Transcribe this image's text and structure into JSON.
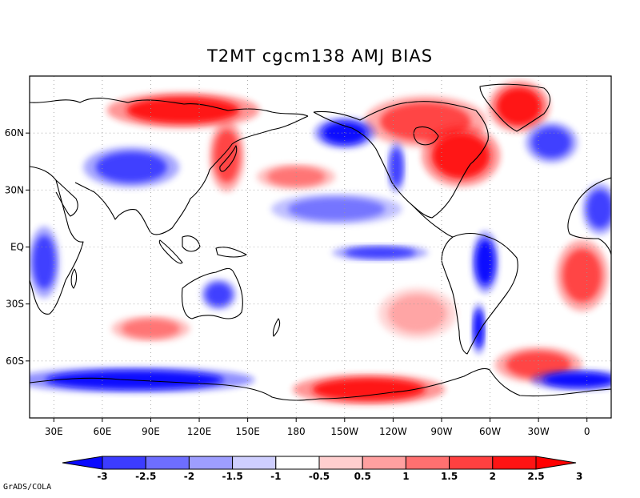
{
  "title": "T2MT cgcm138 AMJ  BIAS",
  "credit": "GrADS/COLA",
  "map": {
    "projection": "equirectangular",
    "lon_range": [
      15,
      375
    ],
    "lat_range": [
      -90,
      90
    ],
    "grid": true,
    "x_ticks": [
      {
        "lon": 30,
        "label": "30E"
      },
      {
        "lon": 60,
        "label": "60E"
      },
      {
        "lon": 90,
        "label": "90E"
      },
      {
        "lon": 120,
        "label": "120E"
      },
      {
        "lon": 150,
        "label": "150E"
      },
      {
        "lon": 180,
        "label": "180"
      },
      {
        "lon": 210,
        "label": "150W"
      },
      {
        "lon": 240,
        "label": "120W"
      },
      {
        "lon": 270,
        "label": "90W"
      },
      {
        "lon": 300,
        "label": "60W"
      },
      {
        "lon": 330,
        "label": "30W"
      },
      {
        "lon": 360,
        "label": "0"
      }
    ],
    "y_ticks": [
      {
        "lat": 60,
        "label": "60N"
      },
      {
        "lat": 30,
        "label": "30N"
      },
      {
        "lat": 0,
        "label": "EQ"
      },
      {
        "lat": -30,
        "label": "30S"
      },
      {
        "lat": -60,
        "label": "60S"
      }
    ]
  },
  "colorbar": {
    "boundaries": [
      "-3",
      "-2.5",
      "-2",
      "-1.5",
      "-1",
      "-0.5",
      "0.5",
      "1",
      "1.5",
      "2",
      "2.5",
      "3"
    ],
    "colors": [
      "#0a0aff",
      "#3c3cff",
      "#6e6eff",
      "#9e9eff",
      "#cfcfff",
      "#ffffff",
      "#ffcfcf",
      "#ffa0a0",
      "#ff7070",
      "#ff4040",
      "#ff1414",
      "#ff0000"
    ]
  },
  "levels": {
    "strong_pos": "#ff1414",
    "pos": "#ff4545",
    "mid_pos": "#ff7575",
    "weak_pos": "#ffa5a5",
    "faint_pos": "#ffd2d2",
    "strong_neg": "#0a0aff",
    "neg": "#4040ff",
    "mid_neg": "#7575ff",
    "weak_neg": "#a5a5ff",
    "faint_neg": "#d2d2ff"
  },
  "bias_regions": [
    {
      "name": "greenland",
      "lon": 318,
      "lat": 74,
      "rx": 14,
      "ry": 10,
      "level": "strong_pos"
    },
    {
      "name": "canada-arctic",
      "lon": 260,
      "lat": 66,
      "rx": 28,
      "ry": 10,
      "level": "pos"
    },
    {
      "name": "eastern-us-canada",
      "lon": 282,
      "lat": 48,
      "rx": 18,
      "ry": 12,
      "level": "strong_pos"
    },
    {
      "name": "alaska-neg",
      "lon": 210,
      "lat": 60,
      "rx": 14,
      "ry": 6,
      "level": "strong_neg"
    },
    {
      "name": "western-us-neg",
      "lon": 242,
      "lat": 42,
      "rx": 4,
      "ry": 10,
      "level": "neg"
    },
    {
      "name": "siberia-pos",
      "lon": 110,
      "lat": 72,
      "rx": 35,
      "ry": 7,
      "level": "strong_pos"
    },
    {
      "name": "east-asia-pos",
      "lon": 137,
      "lat": 48,
      "rx": 8,
      "ry": 14,
      "level": "pos"
    },
    {
      "name": "central-asia-neg",
      "lon": 78,
      "lat": 42,
      "rx": 22,
      "ry": 8,
      "level": "neg"
    },
    {
      "name": "north-pacific-pos",
      "lon": 180,
      "lat": 37,
      "rx": 18,
      "ry": 5,
      "level": "mid_pos"
    },
    {
      "name": "pacific-subtropical-neg",
      "lon": 205,
      "lat": 20,
      "rx": 30,
      "ry": 6,
      "level": "mid_neg"
    },
    {
      "name": "equatorial-pacific-neg",
      "lon": 232,
      "lat": -3,
      "rx": 22,
      "ry": 3,
      "level": "neg"
    },
    {
      "name": "north-atlantic-neg",
      "lon": 338,
      "lat": 55,
      "rx": 12,
      "ry": 8,
      "level": "neg"
    },
    {
      "name": "sahara-neg",
      "lon": 368,
      "lat": 20,
      "rx": 8,
      "ry": 10,
      "level": "neg"
    },
    {
      "name": "central-africa-neg",
      "lon": 24,
      "lat": -8,
      "rx": 7,
      "ry": 14,
      "level": "neg"
    },
    {
      "name": "south-atlantic-pos",
      "lon": 357,
      "lat": -15,
      "rx": 12,
      "ry": 14,
      "level": "pos"
    },
    {
      "name": "amazon-neg",
      "lon": 297,
      "lat": -8,
      "rx": 6,
      "ry": 12,
      "level": "strong_neg"
    },
    {
      "name": "patagonia-neg",
      "lon": 293,
      "lat": -43,
      "rx": 3,
      "ry": 10,
      "level": "strong_neg"
    },
    {
      "name": "australia-neg",
      "lon": 132,
      "lat": -25,
      "rx": 8,
      "ry": 6,
      "level": "neg"
    },
    {
      "name": "south-indian-pos",
      "lon": 90,
      "lat": -43,
      "rx": 18,
      "ry": 5,
      "level": "mid_pos"
    },
    {
      "name": "southeast-pacific-pos",
      "lon": 255,
      "lat": -35,
      "rx": 18,
      "ry": 10,
      "level": "weak_pos"
    },
    {
      "name": "antarctic-pacific-pos",
      "lon": 225,
      "lat": -75,
      "rx": 35,
      "ry": 6,
      "level": "strong_pos"
    },
    {
      "name": "antarctic-indian-neg",
      "lon": 80,
      "lat": -70,
      "rx": 55,
      "ry": 5,
      "level": "strong_neg"
    },
    {
      "name": "weddell-pos",
      "lon": 330,
      "lat": -62,
      "rx": 20,
      "ry": 7,
      "level": "pos"
    },
    {
      "name": "antarctic-atlantic-neg",
      "lon": 355,
      "lat": -70,
      "rx": 22,
      "ry": 4,
      "level": "strong_neg"
    }
  ]
}
